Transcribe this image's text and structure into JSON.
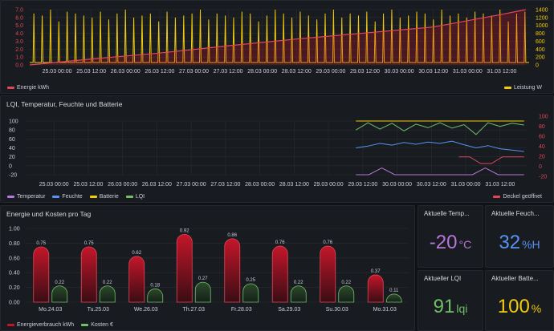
{
  "colors": {
    "red": "#c4162a",
    "red_line": "#e0485a",
    "yellow": "#f2cc0c",
    "blue": "#5794f2",
    "green": "#73bf69",
    "purple": "#b877d9",
    "bg": "#111217",
    "panel": "#181b1f",
    "grid": "#2a2d33"
  },
  "panel1": {
    "legend": [
      {
        "label": "Energie kWh",
        "color": "#e0485a",
        "icon": "legend-swatch"
      },
      {
        "label": "Leistung W",
        "color": "#f2cc0c",
        "icon": "legend-swatch"
      }
    ]
  },
  "panel2": {
    "title": "LQI, Temperatur, Feuchte und Batterie",
    "legend_left": [
      {
        "label": "Temperatur",
        "color": "#b877d9"
      },
      {
        "label": "Feuchte",
        "color": "#5794f2"
      },
      {
        "label": "Batterie",
        "color": "#f2cc0c"
      },
      {
        "label": "LQI",
        "color": "#73bf69"
      }
    ],
    "legend_right": {
      "label": "Deckel geöffnet",
      "color": "#e0485a"
    }
  },
  "panel3": {
    "title": "Energie und Kosten pro Tag",
    "legend": [
      {
        "label": "Energieverbrauch kWh",
        "color": "#c4162a"
      },
      {
        "label": "Kosten €",
        "color": "#73bf69"
      }
    ]
  },
  "stats": {
    "temp": {
      "title": "Aktuelle Temp...",
      "value": "-20",
      "unit": "°C",
      "color": "#b877d9"
    },
    "feuchte": {
      "title": "Aktuelle Feuch...",
      "value": "32",
      "unit": "%H",
      "color": "#5794f2"
    },
    "lqi": {
      "title": "Aktueller LQI",
      "value": "91",
      "unit": "lqi",
      "color": "#73bf69"
    },
    "batterie": {
      "title": "Aktueller Batte...",
      "value": "100",
      "unit": "%",
      "color": "#f2cc0c"
    }
  },
  "chart_data": [
    {
      "type": "line",
      "title": "",
      "x_ticks": [
        "25.03 00:00",
        "25.03 12:00",
        "26.03 00:00",
        "26.03 12:00",
        "27.03 00:00",
        "27.03 12:00",
        "28.03 00:00",
        "28.03 12:00",
        "29.03 00:00",
        "29.03 12:00",
        "30.03 00:00",
        "30.03 12:00",
        "31.03 00:00",
        "31.03 12:00"
      ],
      "y_left_ticks": [
        "7.0",
        "6.0",
        "5.0",
        "4.0",
        "3.0",
        "2.0",
        "1.0",
        "0.0"
      ],
      "y_right_ticks": [
        "1400",
        "1200",
        "1000",
        "800",
        "600",
        "400",
        "200",
        "0"
      ],
      "ylim_left": [
        0,
        7
      ],
      "ylim_right": [
        0,
        1400
      ],
      "series": [
        {
          "name": "Energie kWh",
          "axis": "left",
          "x": [
            24.6,
            25.5,
            26.5,
            27.5,
            28.5,
            29.5,
            30.5,
            31.5,
            31.85
          ],
          "values": [
            0.0,
            0.75,
            1.5,
            2.42,
            3.28,
            4.04,
            4.8,
            6.4,
            7.0
          ]
        },
        {
          "name": "Leistung W",
          "axis": "right",
          "baseline": 60,
          "spikes": [
            1300,
            1250,
            1400,
            1100,
            1350,
            1300,
            1250,
            1200,
            1350,
            1150,
            1300,
            1400,
            1200,
            1250,
            1300,
            1100,
            1350,
            1200,
            1250,
            1300,
            1400,
            1150,
            1300,
            1250,
            1200,
            1350,
            1300,
            1100,
            1250,
            1400,
            1300,
            1200,
            1350,
            1250,
            1150,
            1300,
            1400,
            1200,
            1300,
            1250,
            1350,
            1100,
            1300,
            1400,
            1200,
            1250,
            1350,
            1300,
            1150,
            1400,
            1250,
            1300,
            1200,
            1350,
            1300,
            1250,
            1400,
            1100,
            1300,
            1350
          ]
        }
      ]
    },
    {
      "type": "line",
      "title": "LQI, Temperatur, Feuchte und Batterie",
      "x_ticks": [
        "25.03 00:00",
        "25.03 12:00",
        "26.03 00:00",
        "26.03 12:00",
        "27.03 00:00",
        "27.03 12:00",
        "28.03 00:00",
        "28.03 12:00",
        "29.03 00:00",
        "29.03 12:00",
        "30.03 00:00",
        "30.03 12:00",
        "31.03 00:00",
        "31.03 12:00"
      ],
      "y_left_ticks": [
        "100",
        "80",
        "60",
        "40",
        "20",
        "0",
        "-20"
      ],
      "y_right_ticks": [
        "100",
        "80",
        "60",
        "40",
        "20",
        "0",
        "-20"
      ],
      "ylim": [
        -20,
        100
      ],
      "series": [
        {
          "name": "Batterie",
          "start": 29.4,
          "end": 31.85,
          "values": [
            100,
            100,
            100,
            100
          ]
        },
        {
          "name": "LQI",
          "start": 29.4,
          "end": 31.85,
          "values": [
            80,
            96,
            82,
            95,
            78,
            93,
            85,
            96,
            84,
            92,
            70,
            96,
            88,
            95,
            91
          ]
        },
        {
          "name": "Feuchte",
          "start": 29.4,
          "end": 31.85,
          "values": [
            40,
            44,
            50,
            46,
            52,
            48,
            53,
            50,
            55,
            47,
            40,
            45,
            38,
            35,
            32
          ]
        },
        {
          "name": "Temperatur",
          "start": 29.4,
          "end": 31.85,
          "values": [
            -20,
            -20,
            -5,
            -20,
            -20,
            -20,
            -20,
            -20,
            -20,
            -20,
            -5,
            -20,
            -20,
            -20
          ]
        },
        {
          "name": "Deckel geöffnet",
          "start": 30.9,
          "end": 31.85,
          "values": [
            20,
            20,
            5,
            5,
            20,
            20,
            20
          ]
        }
      ]
    },
    {
      "type": "bar",
      "title": "Energie und Kosten pro Tag",
      "categories": [
        "Mo.24.03",
        "Tu.25.03",
        "We.26.03",
        "Th.27.03",
        "Fr.28.03",
        "Sa.29.03",
        "Su.30.03",
        "Mo.31.03"
      ],
      "y_ticks": [
        "1.00",
        "0.80",
        "0.60",
        "0.40",
        "0.20",
        "0.00"
      ],
      "ylim": [
        0,
        1.0
      ],
      "series": [
        {
          "name": "Energieverbrauch kWh",
          "values": [
            0.75,
            0.75,
            0.62,
            0.92,
            0.86,
            0.76,
            0.76,
            0.37
          ],
          "labels": [
            "0.75",
            "0.75",
            "0.62",
            "0.92",
            "0.86",
            "0.76",
            "0.76",
            "0.37"
          ]
        },
        {
          "name": "Kosten €",
          "values": [
            0.22,
            0.22,
            0.18,
            0.27,
            0.25,
            0.22,
            0.22,
            0.11
          ],
          "labels": [
            "0.22",
            "0.22",
            "0.18",
            "0.27",
            "0.25",
            "0.22",
            "0.22",
            "0.11"
          ]
        }
      ]
    }
  ]
}
